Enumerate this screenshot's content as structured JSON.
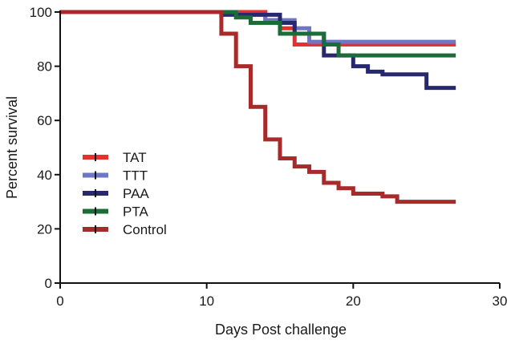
{
  "chart_data": {
    "type": "line",
    "step": true,
    "title": "",
    "xlabel": "Days Post challenge",
    "ylabel": "Percent survival",
    "xlim": [
      0,
      30
    ],
    "ylim": [
      0,
      100
    ],
    "xticks": [
      0,
      10,
      20,
      30
    ],
    "yticks": [
      0,
      20,
      40,
      60,
      80,
      100
    ],
    "grid": false,
    "legend_position": "center-left",
    "series": [
      {
        "name": "TAT",
        "color": "#e8312c",
        "points": [
          [
            0,
            100
          ],
          [
            14,
            100
          ],
          [
            14,
            97
          ],
          [
            15,
            97
          ],
          [
            15,
            94
          ],
          [
            16,
            94
          ],
          [
            16,
            88
          ],
          [
            27,
            88
          ]
        ]
      },
      {
        "name": "TTT",
        "color": "#6f76c6",
        "points": [
          [
            0,
            100
          ],
          [
            12,
            100
          ],
          [
            12,
            99
          ],
          [
            14,
            99
          ],
          [
            14,
            97
          ],
          [
            16,
            97
          ],
          [
            16,
            94
          ],
          [
            17,
            94
          ],
          [
            17,
            89
          ],
          [
            27,
            89
          ]
        ]
      },
      {
        "name": "PAA",
        "color": "#27286e",
        "points": [
          [
            0,
            100
          ],
          [
            11,
            100
          ],
          [
            11,
            99
          ],
          [
            15,
            99
          ],
          [
            15,
            96
          ],
          [
            16,
            96
          ],
          [
            16,
            92
          ],
          [
            18,
            92
          ],
          [
            18,
            84
          ],
          [
            20,
            84
          ],
          [
            20,
            80
          ],
          [
            21,
            80
          ],
          [
            21,
            78
          ],
          [
            22,
            78
          ],
          [
            22,
            77
          ],
          [
            25,
            77
          ],
          [
            25,
            72
          ],
          [
            27,
            72
          ]
        ]
      },
      {
        "name": "PTA",
        "color": "#1e6b3a",
        "points": [
          [
            0,
            100
          ],
          [
            12,
            100
          ],
          [
            12,
            98
          ],
          [
            13,
            98
          ],
          [
            13,
            96
          ],
          [
            15,
            96
          ],
          [
            15,
            92
          ],
          [
            18,
            92
          ],
          [
            18,
            88
          ],
          [
            19,
            88
          ],
          [
            19,
            84
          ],
          [
            27,
            84
          ]
        ]
      },
      {
        "name": "Control",
        "color": "#a82a2a",
        "points": [
          [
            0,
            100
          ],
          [
            11,
            100
          ],
          [
            11,
            92
          ],
          [
            12,
            92
          ],
          [
            12,
            80
          ],
          [
            13,
            80
          ],
          [
            13,
            65
          ],
          [
            14,
            65
          ],
          [
            14,
            53
          ],
          [
            15,
            53
          ],
          [
            15,
            46
          ],
          [
            16,
            46
          ],
          [
            16,
            43
          ],
          [
            17,
            43
          ],
          [
            17,
            41
          ],
          [
            18,
            41
          ],
          [
            18,
            37
          ],
          [
            19,
            37
          ],
          [
            19,
            35
          ],
          [
            20,
            35
          ],
          [
            20,
            33
          ],
          [
            22,
            33
          ],
          [
            22,
            32
          ],
          [
            23,
            32
          ],
          [
            23,
            30
          ],
          [
            27,
            30
          ]
        ]
      }
    ]
  }
}
